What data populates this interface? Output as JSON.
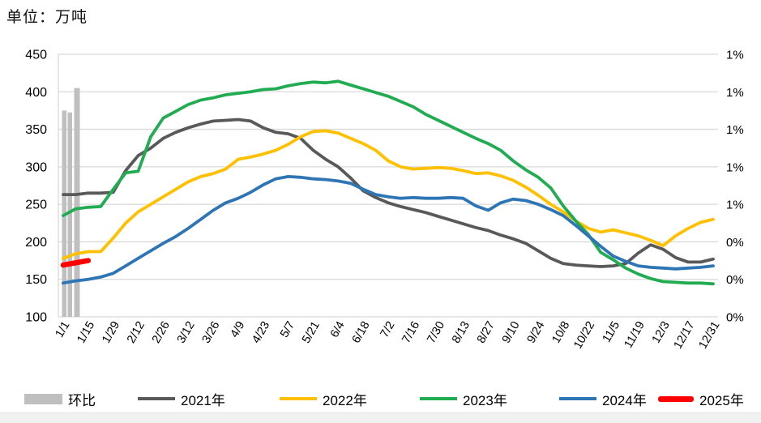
{
  "title": "单位：万吨",
  "colors": {
    "gridline": "#D9D9D9",
    "bar": "#BFBFBF",
    "s2021": "#595959",
    "s2022": "#FFC000",
    "s2023": "#22AC52",
    "s2024": "#2E75B6",
    "s2025": "#FF0000",
    "text": "#000000",
    "bottom_strip": "#F1F1F1"
  },
  "legend": [
    {
      "id": "huanbi",
      "label": "环比",
      "color": "#BFBFBF",
      "swatch": "bar"
    },
    {
      "id": "y2021",
      "label": "2021年",
      "color": "#595959",
      "swatch": "line"
    },
    {
      "id": "y2022",
      "label": "2022年",
      "color": "#FFC000",
      "swatch": "line"
    },
    {
      "id": "y2023",
      "label": "2023年",
      "color": "#22AC52",
      "swatch": "line"
    },
    {
      "id": "y2024",
      "label": "2024年",
      "color": "#2E75B6",
      "swatch": "line"
    },
    {
      "id": "y2025",
      "label": "2025年",
      "color": "#FF0000",
      "swatch": "thick"
    }
  ],
  "chart_data": {
    "type": "mixed",
    "title": "单位：万吨",
    "x_frequency": "weekly, tick labels every 2 weeks",
    "x_tick_labels": [
      "1/1",
      "1/15",
      "1/29",
      "2/12",
      "2/26",
      "3/12",
      "3/26",
      "4/9",
      "4/23",
      "5/7",
      "5/21",
      "6/4",
      "6/18",
      "7/2",
      "7/16",
      "7/30",
      "8/13",
      "8/27",
      "9/10",
      "9/24",
      "10/8",
      "10/22",
      "11/5",
      "11/19",
      "12/3",
      "12/17",
      "12/31"
    ],
    "y_left": {
      "unit": "万吨",
      "min": 100,
      "max": 450,
      "ticks": [
        450,
        400,
        350,
        300,
        250,
        200,
        150,
        100
      ]
    },
    "y_right": {
      "unit": "%",
      "min": 0,
      "max": 1.4,
      "tick_labels": [
        "1%",
        "1%",
        "1%",
        "1%",
        "1%",
        "0%",
        "0%",
        "0%"
      ]
    },
    "grid": "horizontal gridlines on",
    "legend_position": "bottom",
    "series": [
      {
        "name": "环比",
        "type": "bar",
        "axis": "right",
        "color": "#BFBFBF",
        "weeks": [
          "1/1",
          "1/8",
          "1/15"
        ],
        "values_pct": [
          1.1,
          1.09,
          1.22
        ]
      },
      {
        "name": "2021年",
        "type": "line",
        "axis": "left",
        "color": "#595959",
        "values": [
          263,
          263,
          265,
          265,
          266,
          295,
          315,
          325,
          338,
          346,
          352,
          357,
          361,
          362,
          363,
          361,
          352,
          346,
          344,
          338,
          322,
          310,
          300,
          285,
          268,
          259,
          252,
          247,
          243,
          239,
          234,
          229,
          224,
          219,
          215,
          209,
          204,
          198,
          188,
          178,
          171,
          169,
          168,
          167,
          168,
          171,
          185,
          196,
          190,
          179,
          173,
          173,
          177
        ]
      },
      {
        "name": "2022年",
        "type": "line",
        "axis": "left",
        "color": "#FFC000",
        "values": [
          178,
          184,
          187,
          187,
          205,
          225,
          240,
          250,
          260,
          270,
          280,
          287,
          291,
          297,
          310,
          313,
          317,
          322,
          330,
          340,
          347,
          348,
          345,
          338,
          331,
          322,
          308,
          300,
          297,
          298,
          299,
          298,
          295,
          291,
          292,
          288,
          282,
          273,
          262,
          250,
          240,
          228,
          218,
          213,
          216,
          212,
          208,
          202,
          195,
          208,
          218,
          226,
          230
        ]
      },
      {
        "name": "2023年",
        "type": "line",
        "axis": "left",
        "color": "#22AC52",
        "values": [
          235,
          244,
          246,
          247,
          270,
          292,
          294,
          340,
          365,
          374,
          383,
          389,
          392,
          396,
          398,
          400,
          403,
          404,
          408,
          411,
          413,
          412,
          414,
          409,
          404,
          399,
          394,
          387,
          380,
          370,
          362,
          354,
          346,
          338,
          331,
          322,
          308,
          296,
          286,
          272,
          248,
          228,
          210,
          186,
          176,
          165,
          157,
          151,
          147,
          146,
          145,
          145,
          144
        ]
      },
      {
        "name": "2024年",
        "type": "line",
        "axis": "left",
        "color": "#2E75B6",
        "values": [
          145,
          148,
          150,
          153,
          158,
          168,
          178,
          188,
          198,
          207,
          218,
          230,
          242,
          252,
          258,
          266,
          276,
          284,
          287,
          286,
          284,
          283,
          281,
          278,
          270,
          263,
          260,
          258,
          259,
          258,
          258,
          259,
          258,
          248,
          242,
          252,
          257,
          255,
          250,
          243,
          235,
          222,
          208,
          194,
          181,
          174,
          168,
          166,
          165,
          164,
          165,
          166,
          168
        ]
      },
      {
        "name": "2025年",
        "type": "line",
        "axis": "left",
        "color": "#FF0000",
        "thick": true,
        "weeks": [
          "1/1",
          "1/8",
          "1/15"
        ],
        "values": [
          169,
          172,
          175
        ]
      }
    ]
  }
}
